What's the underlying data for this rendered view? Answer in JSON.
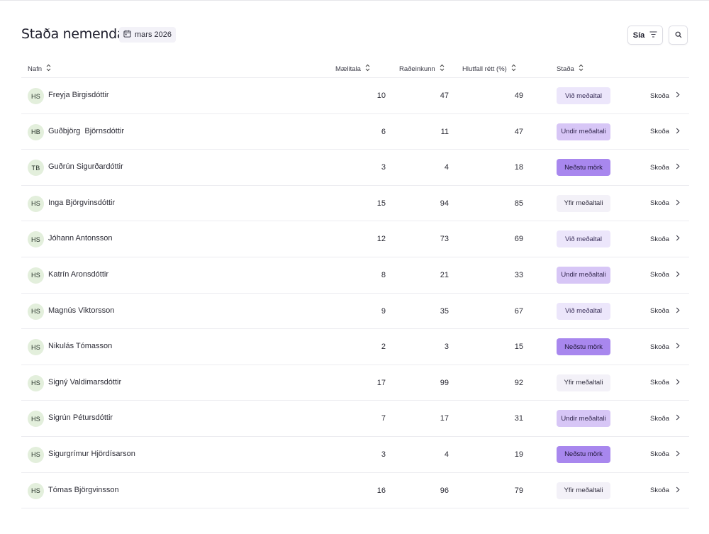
{
  "page": {
    "title": "Staða nemenda",
    "date": "mars 2026"
  },
  "toolbar": {
    "filter_label": "Sía"
  },
  "columns": {
    "name": "Nafn",
    "score": "Mælitala",
    "rank": "Raðeinkunn",
    "percent": "Hlutfall rétt (%)",
    "status": "Staða"
  },
  "status_colors": {
    "Við meðaltal": "#ece6fb",
    "Undir meðaltali": "#d7c6f6",
    "Neðstu mörk": "#a887ee",
    "Yfir meðaltali": "#f3f1f8"
  },
  "rows": [
    {
      "initials": "HS",
      "name": "Freyja Birgisdóttir",
      "score": "10",
      "rank": "47",
      "percent": "49",
      "status": "Við meðaltal",
      "action": "Skoða"
    },
    {
      "initials": "HB",
      "name": "Guðbjörg  Björnsdóttir",
      "score": "6",
      "rank": "11",
      "percent": "47",
      "status": "Undir meðaltali",
      "action": "Skoða"
    },
    {
      "initials": "TB",
      "name": "Guðrún Sigurðardóttir",
      "score": "3",
      "rank": "4",
      "percent": "18",
      "status": "Neðstu mörk",
      "action": "Skoða"
    },
    {
      "initials": "HS",
      "name": "Inga Björgvinsdóttir",
      "score": "15",
      "rank": "94",
      "percent": "85",
      "status": "Yfir meðaltali",
      "action": "Skoða"
    },
    {
      "initials": "HS",
      "name": "Jóhann Antonsson",
      "score": "12",
      "rank": "73",
      "percent": "69",
      "status": "Við meðaltal",
      "action": "Skoða"
    },
    {
      "initials": "HS",
      "name": "Katrín Aronsdóttir",
      "score": "8",
      "rank": "21",
      "percent": "33",
      "status": "Undir meðaltali",
      "action": "Skoða"
    },
    {
      "initials": "HS",
      "name": "Magnús Viktorsson",
      "score": "9",
      "rank": "35",
      "percent": "67",
      "status": "Við meðaltal",
      "action": "Skoða"
    },
    {
      "initials": "HS",
      "name": "Nikulás Tómasson",
      "score": "2",
      "rank": "3",
      "percent": "15",
      "status": "Neðstu mörk",
      "action": "Skoða"
    },
    {
      "initials": "HS",
      "name": "Signý Valdimarsdóttir",
      "score": "17",
      "rank": "99",
      "percent": "92",
      "status": "Yfir meðaltali",
      "action": "Skoða"
    },
    {
      "initials": "HS",
      "name": "Sigrún Pétursdóttir",
      "score": "7",
      "rank": "17",
      "percent": "31",
      "status": "Undir meðaltali",
      "action": "Skoða"
    },
    {
      "initials": "HS",
      "name": "Sigurgrímur Hjördísarson",
      "score": "3",
      "rank": "4",
      "percent": "19",
      "status": "Neðstu mörk",
      "action": "Skoða"
    },
    {
      "initials": "HS",
      "name": "Tómas Björgvinsson",
      "score": "16",
      "rank": "96",
      "percent": "79",
      "status": "Yfir meðaltali",
      "action": "Skoða"
    }
  ]
}
